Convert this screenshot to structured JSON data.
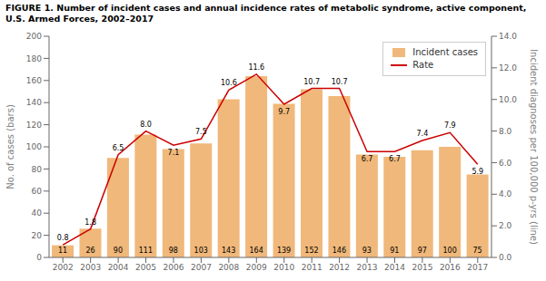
{
  "chart_data": {
    "type": "bar",
    "title": "FIGURE 1. Number of incident cases and annual incidence rates of metabolic syndrome, active component, U.S. Armed Forces, 2002–2017",
    "categories": [
      "2002",
      "2003",
      "2004",
      "2005",
      "2006",
      "2007",
      "2008",
      "2009",
      "2010",
      "2011",
      "2012",
      "2013",
      "2014",
      "2015",
      "2016",
      "2017"
    ],
    "series": [
      {
        "name": "Incident cases",
        "type": "bar",
        "color": "#F0B87A",
        "values": [
          11,
          26,
          90,
          111,
          98,
          103,
          143,
          164,
          139,
          152,
          146,
          93,
          91,
          97,
          100,
          75
        ]
      },
      {
        "name": "Rate",
        "type": "line",
        "axis": "y2",
        "color": "#CC0000",
        "values": [
          0.8,
          1.8,
          6.5,
          8.0,
          7.1,
          7.5,
          10.6,
          11.6,
          9.7,
          10.7,
          10.7,
          6.7,
          6.7,
          7.4,
          7.9,
          5.9
        ],
        "value_labels": [
          "0.8",
          "1.8",
          "6.5",
          "8.0",
          "7.1",
          "7.5",
          "10.6",
          "11.6",
          "9.7",
          "10.7",
          "10.7",
          "6.7",
          "6.7",
          "7.4",
          "7.9",
          "5.9"
        ]
      }
    ],
    "ylabel": "No. of cases (bars)",
    "y2label": "Incident diagnoses per 100,000 p-yrs (line)",
    "ylim": [
      0,
      200
    ],
    "yticks": [
      0,
      20,
      40,
      60,
      80,
      100,
      120,
      140,
      160,
      180,
      200
    ],
    "y2lim": [
      0.0,
      14.0
    ],
    "y2ticks": [
      {
        "value": 0,
        "label": "0.0"
      },
      {
        "value": 2,
        "label": "2.0"
      },
      {
        "value": 4,
        "label": "4.0"
      },
      {
        "value": 6,
        "label": "6.0"
      },
      {
        "value": 8,
        "label": "8.0"
      },
      {
        "value": 10,
        "label": "10.0"
      },
      {
        "value": 12,
        "label": "12.0"
      },
      {
        "value": 14,
        "label": "14.0"
      }
    ],
    "legend": "upper right",
    "data_labels": true,
    "grid": false
  }
}
